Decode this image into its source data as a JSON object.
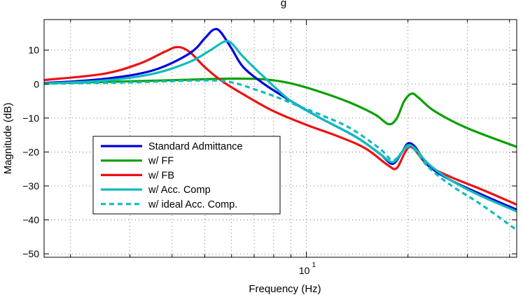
{
  "chart_data": {
    "type": "line",
    "title": "g",
    "xlabel": "Frequency  (Hz)",
    "ylabel": "Magnitude (dB)",
    "xscale": "log",
    "xlim": [
      1.67,
      42
    ],
    "ylim": [
      -51,
      19
    ],
    "yticks": [
      10,
      0,
      -10,
      -20,
      -30,
      -40,
      -50
    ],
    "ytick_labels": [
      "10",
      "0",
      "−10",
      "−20",
      "−30",
      "−40",
      "−50"
    ],
    "xtick_major": 10,
    "xtick_base": "10",
    "xtick_exp": "1",
    "grid": true,
    "legend_position": "lower-left",
    "series": [
      {
        "name": "Standard Admittance",
        "color": "#0000dd",
        "dash": false,
        "x": [
          1.67,
          2.5,
          3.5,
          4.5,
          5.0,
          5.3,
          5.55,
          6.0,
          6.5,
          7.5,
          9.0,
          11.0,
          14.0,
          16.5,
          18.0,
          19.2,
          20.0,
          21.0,
          23.0,
          27.0,
          33.0,
          42.0
        ],
        "y": [
          0.3,
          1.5,
          4.0,
          9.0,
          13.5,
          16.0,
          15.5,
          10.5,
          5.0,
          0.0,
          -5.0,
          -10.0,
          -15.5,
          -20.5,
          -23.5,
          -20.0,
          -17.5,
          -18.5,
          -24.0,
          -28.5,
          -32.5,
          -37.0
        ]
      },
      {
        "name": "w/ FF",
        "color": "#0aa000",
        "dash": false,
        "x": [
          1.67,
          3.0,
          4.5,
          6.0,
          7.5,
          9.0,
          11.0,
          13.5,
          16.0,
          17.5,
          18.5,
          19.5,
          20.5,
          21.5,
          24.0,
          30.0,
          42.0
        ],
        "y": [
          0.2,
          0.8,
          1.3,
          1.6,
          1.4,
          0.2,
          -2.3,
          -5.5,
          -9.0,
          -11.8,
          -10.2,
          -5.0,
          -2.8,
          -4.0,
          -8.0,
          -13.0,
          -18.5
        ]
      },
      {
        "name": "w/ FB",
        "color": "#ee1111",
        "dash": false,
        "x": [
          1.67,
          2.5,
          3.2,
          3.8,
          4.15,
          4.5,
          5.0,
          5.6,
          6.5,
          8.0,
          10.0,
          12.5,
          15.0,
          17.5,
          18.5,
          19.5,
          20.2,
          21.0,
          23.0,
          27.0,
          33.0,
          42.0
        ],
        "y": [
          1.2,
          3.0,
          6.0,
          9.5,
          10.9,
          9.5,
          5.0,
          1.0,
          -3.0,
          -8.0,
          -12.0,
          -15.5,
          -19.0,
          -24.0,
          -24.8,
          -20.5,
          -18.5,
          -19.5,
          -24.0,
          -27.5,
          -31.0,
          -35.5
        ]
      },
      {
        "name": "w/ Acc. Comp",
        "color": "#11bbbb",
        "dash": false,
        "x": [
          1.67,
          2.5,
          3.5,
          4.5,
          5.2,
          5.7,
          6.0,
          6.5,
          7.5,
          9.0,
          11.0,
          14.0,
          16.5,
          18.0,
          19.2,
          20.0,
          21.0,
          23.0,
          27.0,
          33.0,
          42.0
        ],
        "y": [
          0.2,
          1.0,
          3.0,
          6.5,
          10.0,
          12.5,
          12.0,
          8.0,
          2.0,
          -5.0,
          -10.0,
          -15.5,
          -20.5,
          -23.0,
          -20.0,
          -18.0,
          -19.0,
          -23.5,
          -28.5,
          -33.0,
          -37.5
        ]
      },
      {
        "name": "w/ ideal Acc. Comp.",
        "color": "#11bbbb",
        "dash": true,
        "x": [
          1.67,
          3.0,
          4.5,
          5.5,
          6.2,
          7.0,
          8.0,
          9.5,
          11.0,
          13.5,
          16.5,
          18.0,
          19.2,
          20.0,
          21.0,
          23.0,
          27.0,
          33.0,
          42.0
        ],
        "y": [
          0.1,
          0.5,
          1.0,
          1.0,
          0.2,
          -1.5,
          -3.5,
          -6.5,
          -9.0,
          -13.0,
          -19.0,
          -22.5,
          -20.0,
          -18.5,
          -19.5,
          -24.5,
          -30.0,
          -35.5,
          -43.0
        ]
      }
    ]
  }
}
